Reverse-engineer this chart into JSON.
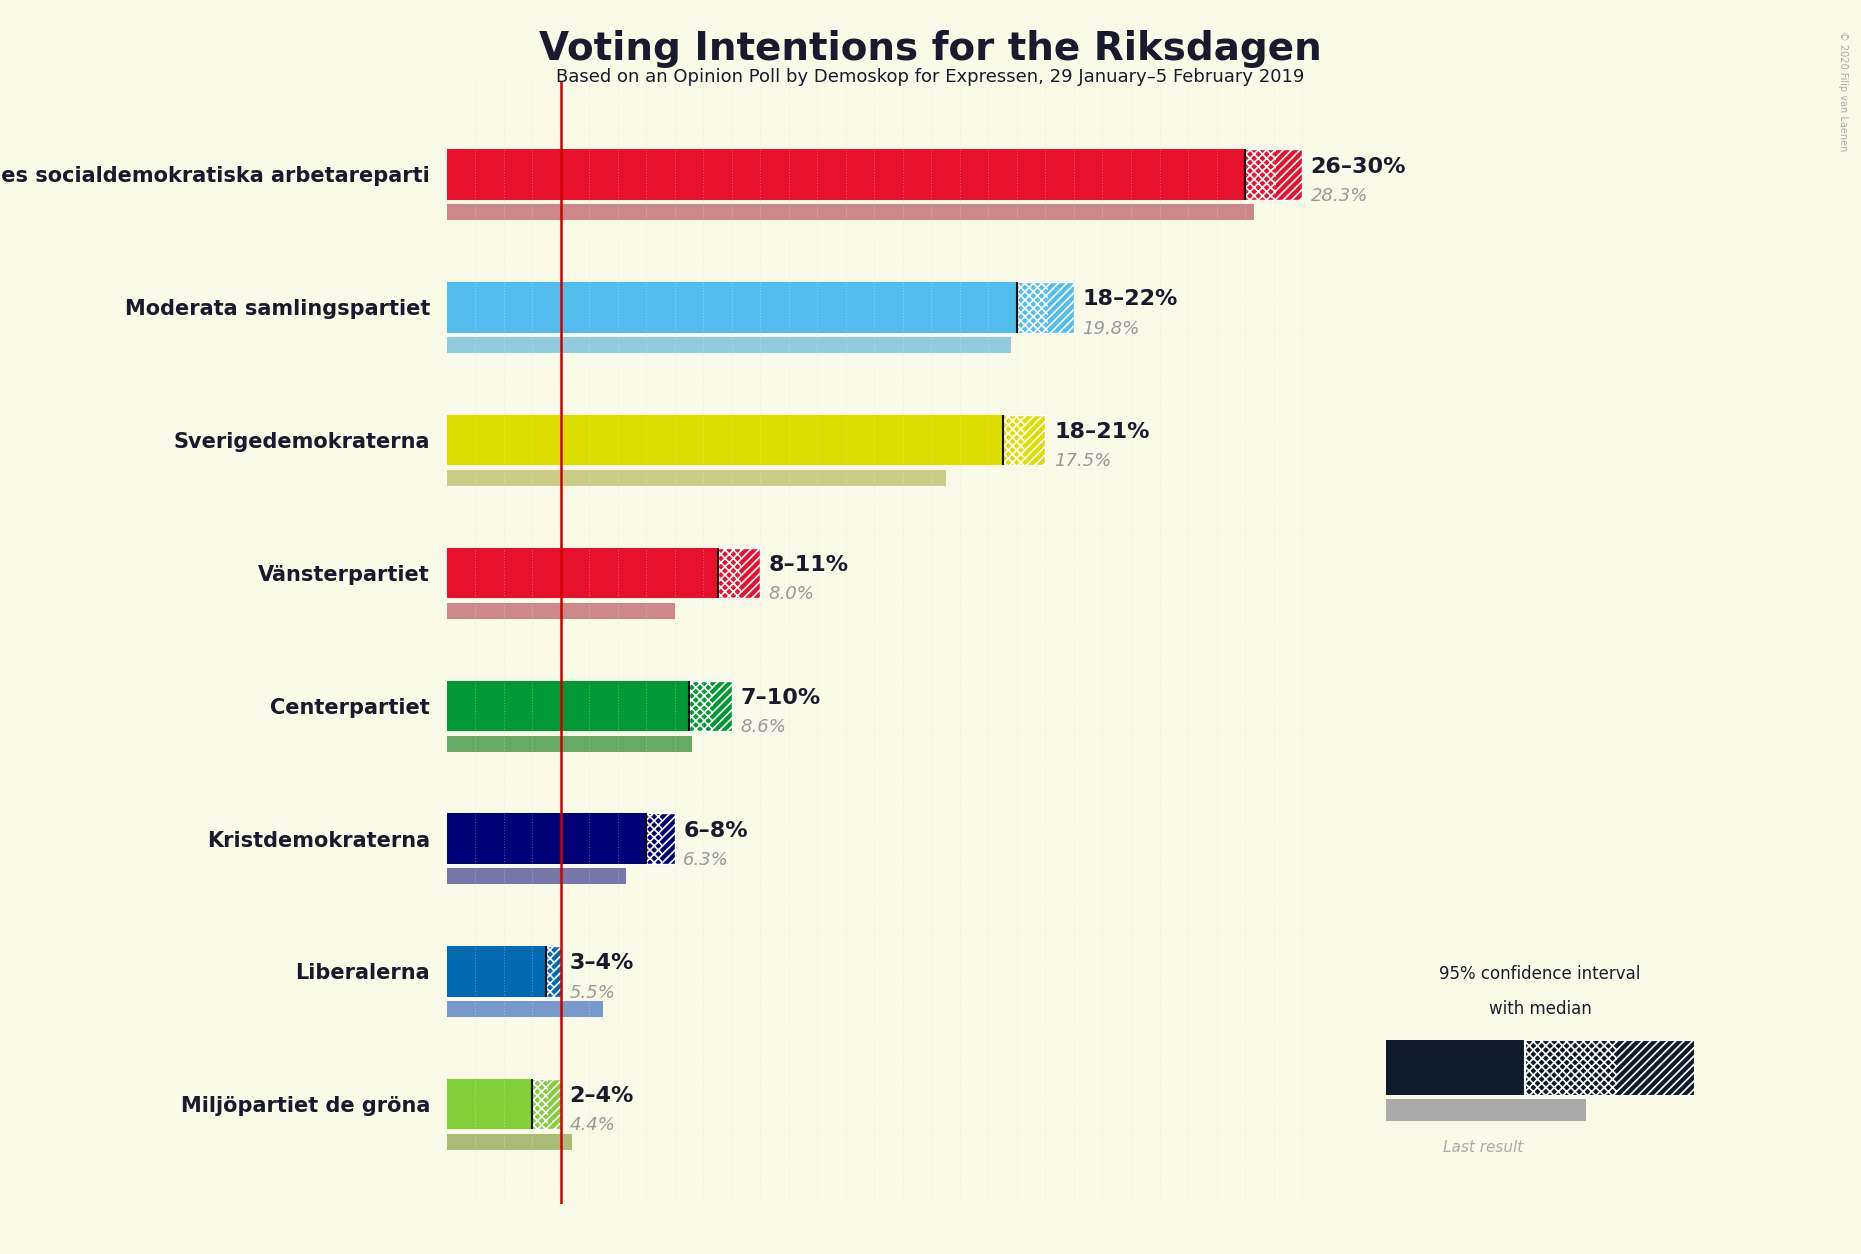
{
  "title": "Voting Intentions for the Riksdagen",
  "subtitle": "Based on an Opinion Poll by Demoskop for Expressen, 29 January–5 February 2019",
  "copyright": "© 2020 Filip van Laenen",
  "background_color": "#FAFAE8",
  "parties": [
    {
      "name": "Sveriges socialdemokratiska arbetareparti",
      "ci_low": 26,
      "ci_high": 30,
      "median": 28,
      "last_result": 28.3,
      "color": "#E8112D",
      "last_color": "#CC8888",
      "label": "26–30%",
      "label_median": "28.3%"
    },
    {
      "name": "Moderata samlingspartiet",
      "ci_low": 18,
      "ci_high": 22,
      "median": 20,
      "last_result": 19.8,
      "color": "#52BDEC",
      "last_color": "#90CCDD",
      "label": "18–22%",
      "label_median": "19.8%"
    },
    {
      "name": "Sverigedemokraterna",
      "ci_low": 18,
      "ci_high": 21,
      "median": 19.5,
      "last_result": 17.5,
      "color": "#DDDD00",
      "last_color": "#CCCC88",
      "label": "18–21%",
      "label_median": "17.5%"
    },
    {
      "name": "Vänsterpartiet",
      "ci_low": 8,
      "ci_high": 11,
      "median": 9.5,
      "last_result": 8.0,
      "color": "#E8112D",
      "last_color": "#CC8888",
      "label": "8–11%",
      "label_median": "8.0%"
    },
    {
      "name": "Centerpartiet",
      "ci_low": 7,
      "ci_high": 10,
      "median": 8.5,
      "last_result": 8.6,
      "color": "#009933",
      "last_color": "#66AA66",
      "label": "7–10%",
      "label_median": "8.6%"
    },
    {
      "name": "Kristdemokraterna",
      "ci_low": 6,
      "ci_high": 8,
      "median": 7,
      "last_result": 6.3,
      "color": "#000077",
      "last_color": "#7777AA",
      "label": "6–8%",
      "label_median": "6.3%"
    },
    {
      "name": "Liberalerna",
      "ci_low": 3,
      "ci_high": 4,
      "median": 3.5,
      "last_result": 5.5,
      "color": "#006AB3",
      "last_color": "#7799CC",
      "label": "3–4%",
      "label_median": "5.5%"
    },
    {
      "name": "Miljöpartiet de gröna",
      "ci_low": 2,
      "ci_high": 4,
      "median": 3,
      "last_result": 4.4,
      "color": "#83CF39",
      "last_color": "#AABB77",
      "label": "2–4%",
      "label_median": "4.4%"
    }
  ],
  "x_max": 31,
  "vertical_line_x": 4.0,
  "vertical_line_color": "#CC0000",
  "title_fontsize": 28,
  "subtitle_fontsize": 13,
  "party_fontsize": 15,
  "label_fontsize": 16,
  "median_label_fontsize": 13
}
